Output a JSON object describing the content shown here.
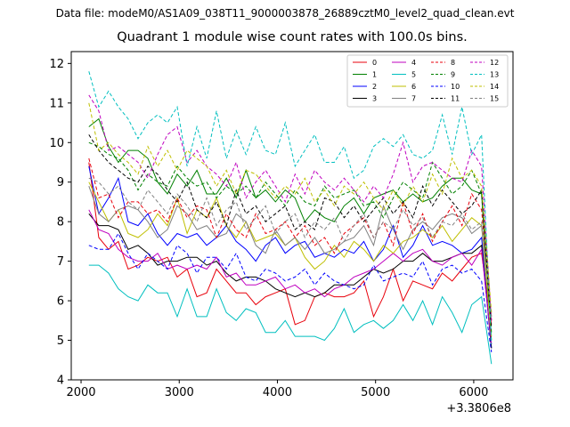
{
  "header": {
    "suptitle": "Data file: modeM0/AS1A09_038T11_9000003878_26889cztM0_level2_quad_clean.evt",
    "title": "Quadrant 1 module wise count rates with 100.0s bins.",
    "x_offset_label": "+3.3806e8"
  },
  "chart_data": {
    "type": "line",
    "title": "Quadrant 1 module wise count rates with 100.0s bins.",
    "xlabel": "",
    "ylabel": "",
    "xlim": [
      1900,
      6400
    ],
    "ylim": [
      4,
      12.3
    ],
    "xticks": [
      2000,
      3000,
      4000,
      5000,
      6000
    ],
    "yticks": [
      4,
      5,
      6,
      7,
      8,
      9,
      10,
      11,
      12
    ],
    "x_offset": "+3.3806e8",
    "grid": false,
    "legend_position": "top-right",
    "x": [
      2080,
      2180,
      2280,
      2380,
      2480,
      2580,
      2680,
      2780,
      2880,
      2980,
      3080,
      3180,
      3280,
      3380,
      3480,
      3580,
      3680,
      3780,
      3880,
      3980,
      4080,
      4180,
      4280,
      4380,
      4480,
      4580,
      4680,
      4780,
      4880,
      4980,
      5080,
      5180,
      5280,
      5380,
      5480,
      5580,
      5680,
      5780,
      5880,
      5980,
      6080,
      6180
    ],
    "series": [
      {
        "name": "0",
        "color": "#e8000b",
        "dash": "solid",
        "values": [
          9.5,
          7.6,
          7.3,
          7.5,
          6.8,
          6.9,
          7.1,
          7.0,
          7.1,
          6.6,
          6.8,
          6.1,
          6.2,
          6.8,
          6.5,
          6.2,
          6.2,
          5.9,
          6.1,
          6.2,
          6.3,
          5.4,
          5.5,
          6.1,
          6.2,
          6.1,
          6.1,
          6.2,
          6.5,
          5.6,
          6.1,
          6.8,
          6.0,
          6.5,
          6.4,
          6.3,
          6.7,
          6.5,
          6.8,
          7.1,
          7.2,
          5.4
        ]
      },
      {
        "name": "1",
        "color": "#008000",
        "dash": "solid",
        "values": [
          10.4,
          10.6,
          9.9,
          9.5,
          9.8,
          9.8,
          9.6,
          9.0,
          8.7,
          9.2,
          8.9,
          9.3,
          8.7,
          8.7,
          9.1,
          8.6,
          9.3,
          8.6,
          8.8,
          8.5,
          8.8,
          8.6,
          8.0,
          8.3,
          8.1,
          8.0,
          8.4,
          8.6,
          8.2,
          8.6,
          8.7,
          8.8,
          8.5,
          8.7,
          8.5,
          8.6,
          8.9,
          9.1,
          9.1,
          8.8,
          8.7,
          5.0
        ]
      },
      {
        "name": "2",
        "color": "#0000ff",
        "dash": "solid",
        "values": [
          9.4,
          8.2,
          8.6,
          9.1,
          8.0,
          7.9,
          8.2,
          7.7,
          7.4,
          7.7,
          7.6,
          7.7,
          7.4,
          7.6,
          7.9,
          7.5,
          7.3,
          7.0,
          7.4,
          7.6,
          7.2,
          7.4,
          7.5,
          7.1,
          7.2,
          7.1,
          7.3,
          7.2,
          7.5,
          7.0,
          7.3,
          7.9,
          7.1,
          7.4,
          7.9,
          7.4,
          7.5,
          7.4,
          7.2,
          7.3,
          7.6,
          4.8
        ]
      },
      {
        "name": "3",
        "color": "#000000",
        "dash": "solid",
        "values": [
          8.2,
          7.9,
          7.9,
          7.8,
          7.3,
          7.4,
          7.2,
          6.9,
          7.0,
          7.0,
          7.1,
          7.1,
          6.9,
          7.0,
          6.7,
          6.5,
          6.6,
          6.6,
          6.5,
          6.3,
          6.2,
          6.1,
          6.2,
          6.1,
          6.2,
          6.4,
          6.4,
          6.4,
          6.6,
          6.8,
          6.7,
          6.8,
          7.0,
          7.0,
          7.2,
          7.0,
          7.0,
          7.1,
          7.2,
          7.2,
          7.4,
          4.8
        ]
      },
      {
        "name": "4",
        "color": "#bf00bf",
        "dash": "solid",
        "values": [
          8.3,
          7.8,
          7.7,
          7.3,
          7.1,
          7.0,
          7.0,
          7.2,
          6.8,
          6.9,
          6.8,
          6.9,
          6.8,
          7.1,
          6.6,
          6.7,
          6.4,
          6.4,
          6.5,
          6.6,
          6.3,
          6.4,
          6.2,
          6.3,
          6.1,
          6.3,
          6.4,
          6.6,
          6.7,
          6.8,
          7.0,
          7.2,
          7.0,
          7.2,
          7.3,
          7.0,
          6.9,
          7.1,
          7.2,
          6.9,
          7.3,
          4.9
        ]
      },
      {
        "name": "5",
        "color": "#00bfbf",
        "dash": "solid",
        "values": [
          6.9,
          6.9,
          6.7,
          6.3,
          6.1,
          6.0,
          6.4,
          6.2,
          6.2,
          5.6,
          6.3,
          5.6,
          5.6,
          6.3,
          5.7,
          5.5,
          5.8,
          5.7,
          5.2,
          5.2,
          5.5,
          5.1,
          5.1,
          5.1,
          5.0,
          5.3,
          5.8,
          5.2,
          5.4,
          5.5,
          5.3,
          5.5,
          5.9,
          5.5,
          6.0,
          5.4,
          6.1,
          5.7,
          5.2,
          5.9,
          6.1,
          4.4
        ]
      },
      {
        "name": "6",
        "color": "#bfbf00",
        "dash": "solid",
        "values": [
          9.0,
          8.5,
          8.0,
          8.3,
          7.7,
          7.6,
          7.8,
          8.2,
          7.9,
          8.6,
          7.7,
          8.3,
          8.1,
          8.6,
          7.9,
          7.6,
          8.0,
          7.5,
          7.6,
          7.7,
          7.4,
          7.6,
          7.1,
          6.8,
          7.0,
          7.4,
          7.1,
          7.5,
          7.3,
          7.0,
          7.4,
          7.2,
          7.5,
          7.6,
          7.8,
          7.6,
          7.9,
          7.5,
          7.8,
          8.1,
          7.9,
          5.1
        ]
      },
      {
        "name": "7",
        "color": "#808080",
        "dash": "solid",
        "values": [
          8.9,
          8.2,
          8.0,
          8.3,
          8.4,
          8.3,
          8.0,
          7.6,
          7.8,
          8.4,
          8.2,
          7.8,
          7.9,
          7.6,
          7.7,
          8.2,
          8.0,
          7.4,
          7.2,
          7.8,
          7.4,
          7.6,
          7.3,
          7.6,
          7.2,
          7.3,
          7.5,
          7.6,
          7.9,
          7.4,
          8.4,
          7.8,
          7.3,
          7.8,
          8.0,
          7.8,
          8.1,
          8.2,
          8.1,
          7.7,
          7.9,
          5.6
        ]
      },
      {
        "name": "8",
        "color": "#e8000b",
        "dash": "dash",
        "values": [
          9.6,
          8.6,
          8.7,
          8.1,
          8.5,
          8.5,
          8.2,
          8.3,
          8.0,
          8.6,
          8.1,
          8.4,
          8.3,
          7.6,
          8.2,
          7.8,
          7.6,
          8.2,
          7.7,
          7.8,
          8.0,
          7.6,
          7.9,
          7.4,
          7.6,
          7.2,
          7.7,
          7.9,
          8.1,
          7.6,
          8.0,
          7.4,
          8.5,
          7.7,
          8.2,
          7.5,
          8.0,
          8.4,
          7.9,
          8.7,
          8.3,
          5.5
        ]
      },
      {
        "name": "9",
        "color": "#008000",
        "dash": "dash",
        "values": [
          10.0,
          9.9,
          9.7,
          9.6,
          9.3,
          8.8,
          9.2,
          9.0,
          8.9,
          9.4,
          9.1,
          8.9,
          9.0,
          8.6,
          8.9,
          8.7,
          8.9,
          8.6,
          9.0,
          8.7,
          8.4,
          8.8,
          8.5,
          8.4,
          8.9,
          8.6,
          8.7,
          8.8,
          8.4,
          8.5,
          8.1,
          8.6,
          9.0,
          8.8,
          8.6,
          9.5,
          9.1,
          8.7,
          8.9,
          9.3,
          8.7,
          5.2
        ]
      },
      {
        "name": "10",
        "color": "#0000ff",
        "dash": "dash",
        "values": [
          7.4,
          7.3,
          7.3,
          7.7,
          7.2,
          6.8,
          7.2,
          7.0,
          6.8,
          7.4,
          7.2,
          6.7,
          7.1,
          7.1,
          6.8,
          7.2,
          6.6,
          6.5,
          6.8,
          6.7,
          6.5,
          6.6,
          6.8,
          6.4,
          6.7,
          6.5,
          6.4,
          6.3,
          6.4,
          6.9,
          6.5,
          6.6,
          6.7,
          6.6,
          7.0,
          6.4,
          6.8,
          6.9,
          6.7,
          6.8,
          6.5,
          4.7
        ]
      },
      {
        "name": "11",
        "color": "#000000",
        "dash": "dash",
        "values": [
          10.2,
          9.8,
          9.5,
          9.3,
          9.1,
          9.0,
          9.4,
          9.2,
          8.8,
          8.5,
          9.0,
          8.3,
          8.1,
          8.5,
          7.9,
          8.8,
          8.2,
          8.4,
          8.0,
          8.2,
          8.4,
          7.8,
          8.0,
          7.8,
          8.6,
          8.5,
          8.1,
          8.4,
          8.0,
          8.3,
          8.6,
          8.2,
          8.5,
          8.1,
          8.9,
          8.4,
          8.8,
          8.5,
          8.2,
          8.4,
          8.8,
          5.3
        ]
      },
      {
        "name": "12",
        "color": "#bf00bf",
        "dash": "dash",
        "values": [
          11.2,
          10.8,
          9.8,
          9.9,
          9.7,
          9.5,
          9.1,
          9.7,
          10.2,
          10.4,
          9.5,
          9.8,
          9.4,
          9.2,
          8.9,
          9.5,
          8.6,
          9.0,
          9.3,
          8.9,
          8.5,
          9.2,
          8.7,
          9.3,
          9.0,
          8.8,
          9.1,
          8.8,
          8.5,
          8.9,
          8.6,
          9.2,
          10.0,
          9.0,
          9.4,
          9.5,
          9.3,
          9.1,
          9.0,
          9.8,
          9.4,
          5.5
        ]
      },
      {
        "name": "13",
        "color": "#00bfbf",
        "dash": "dash",
        "values": [
          11.8,
          10.9,
          11.3,
          10.9,
          10.6,
          10.1,
          10.5,
          10.7,
          10.5,
          10.9,
          9.4,
          10.4,
          9.6,
          10.8,
          9.6,
          10.3,
          9.7,
          10.4,
          9.8,
          9.7,
          10.5,
          9.4,
          9.8,
          10.2,
          9.5,
          9.5,
          9.9,
          9.1,
          9.3,
          9.9,
          10.1,
          9.9,
          10.2,
          9.7,
          9.6,
          9.8,
          10.7,
          9.7,
          10.9,
          9.7,
          10.2,
          4.9
        ]
      },
      {
        "name": "14",
        "color": "#bfbf00",
        "dash": "dash",
        "values": [
          11.0,
          9.8,
          10.0,
          9.7,
          9.5,
          9.2,
          9.9,
          9.4,
          9.8,
          9.3,
          9.8,
          9.6,
          9.4,
          8.9,
          9.3,
          8.7,
          9.3,
          9.2,
          8.9,
          8.6,
          8.9,
          8.7,
          9.1,
          8.5,
          8.8,
          8.4,
          8.9,
          8.7,
          9.0,
          8.6,
          8.3,
          8.8,
          8.4,
          8.9,
          8.5,
          9.2,
          8.7,
          9.6,
          9.1,
          9.3,
          8.9,
          5.7
        ]
      },
      {
        "name": "15",
        "color": "#808080",
        "dash": "dash",
        "values": [
          9.1,
          9.0,
          8.7,
          8.9,
          8.5,
          8.3,
          8.8,
          8.5,
          8.2,
          8.7,
          8.4,
          8.0,
          8.6,
          7.9,
          8.3,
          8.5,
          7.8,
          8.1,
          8.4,
          7.7,
          8.0,
          8.2,
          7.6,
          8.0,
          7.8,
          8.1,
          7.5,
          7.9,
          8.2,
          7.6,
          8.0,
          7.8,
          8.3,
          7.9,
          8.1,
          7.6,
          8.0,
          7.9,
          8.2,
          7.8,
          8.0,
          5.6
        ]
      }
    ]
  }
}
